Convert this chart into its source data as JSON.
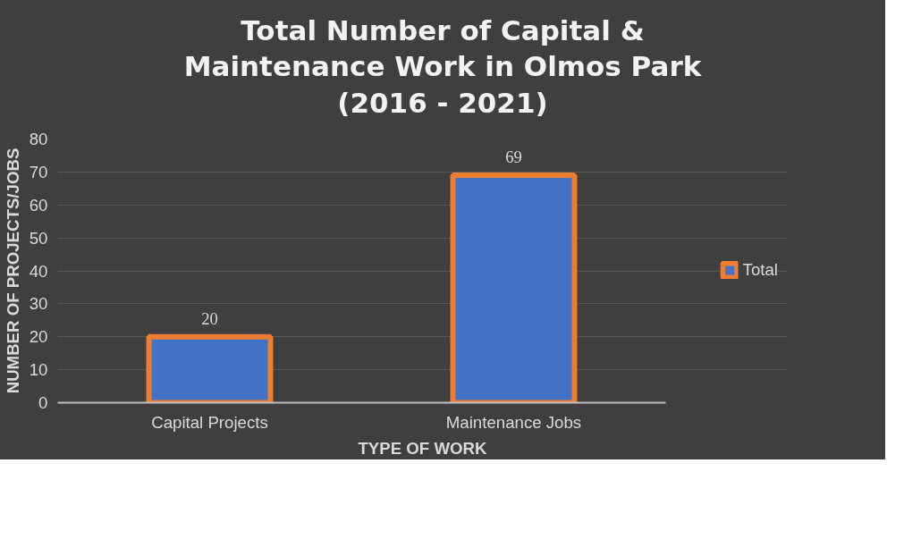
{
  "chart_data": {
    "type": "bar",
    "title": "Total Number of Capital & Maintenance Work in Olmos Park (2016 - 2021)",
    "xlabel": "TYPE OF WORK",
    "ylabel": "NUMBER OF PROJECTS/JOBS",
    "categories": [
      "Capital Projects",
      "Maintenance Jobs"
    ],
    "series": [
      {
        "name": "Total",
        "color": "#4472c4",
        "values": [
          20,
          69
        ]
      }
    ],
    "ylim": [
      0,
      80
    ],
    "yticks": [
      0,
      10,
      20,
      30,
      40,
      50,
      60,
      70,
      80
    ],
    "grid": "y",
    "legend": "right",
    "data_labels": true
  }
}
